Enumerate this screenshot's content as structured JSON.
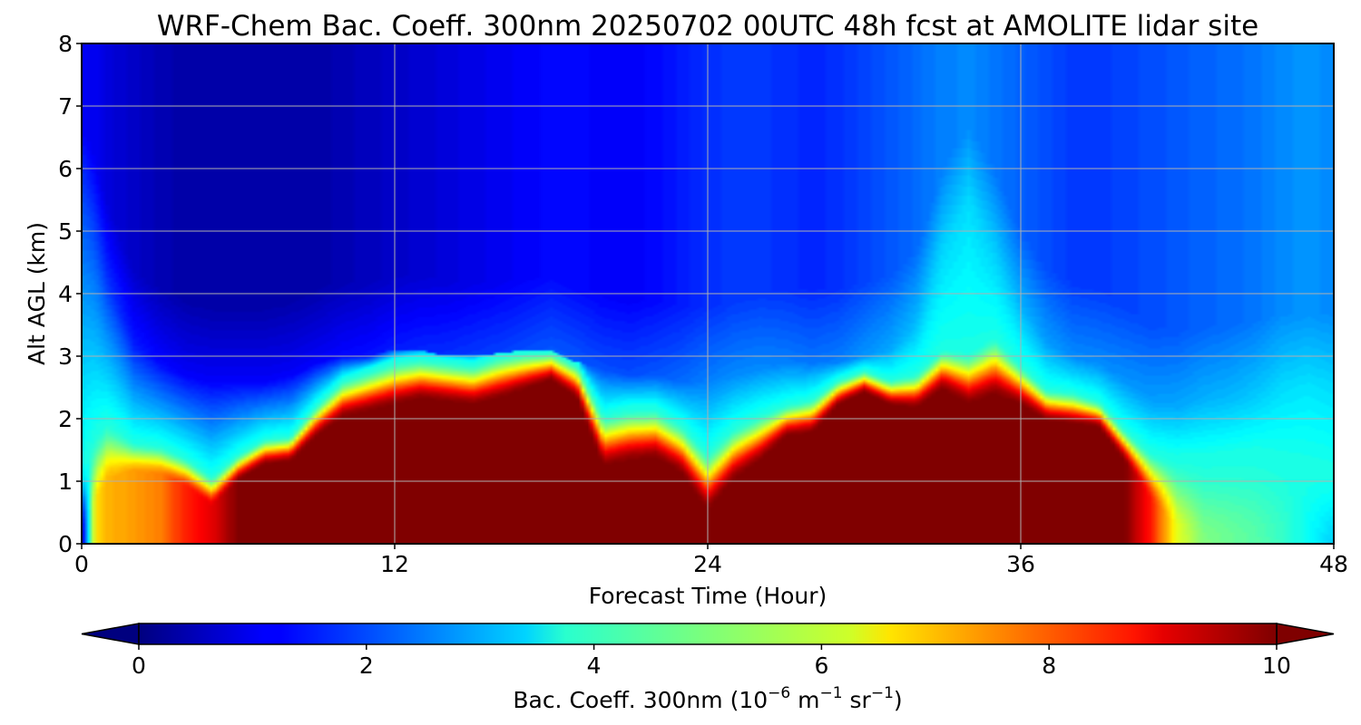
{
  "chart_data": {
    "type": "heatmap",
    "title": "WRF-Chem Bac. Coeff. 300nm  20250702 00UTC 48h fcst at AMOLITE lidar site",
    "xlabel": "Forecast Time (Hour)",
    "ylabel": "Alt AGL (km)",
    "xlim": [
      0,
      48
    ],
    "ylim": [
      0,
      8
    ],
    "x_ticks": [
      "0",
      "12",
      "24",
      "36",
      "48"
    ],
    "y_ticks": [
      "0",
      "1",
      "2",
      "3",
      "4",
      "5",
      "6",
      "7",
      "8"
    ],
    "grid": true,
    "colorbar": {
      "label_main": "Bac. Coeff. 300nm  (10",
      "label_exp1": "−6",
      "label_mid": " m",
      "label_exp2": "−1",
      "label_mid2": " sr",
      "label_exp3": "−1",
      "label_end": ")",
      "ticks": [
        "0",
        "2",
        "4",
        "6",
        "8",
        "10"
      ],
      "range": [
        0,
        10
      ],
      "extend": "both",
      "colormap": "jet"
    },
    "x": [
      0,
      0.5,
      1,
      2,
      3,
      4,
      5,
      6,
      7,
      8,
      9,
      10,
      11,
      12,
      13,
      14,
      15,
      16,
      17,
      18,
      19,
      20,
      21,
      22,
      23,
      24,
      25,
      26,
      27,
      28,
      29,
      30,
      31,
      32,
      33,
      34,
      35,
      36,
      37,
      38,
      39,
      40,
      41,
      42,
      43,
      44,
      45,
      46,
      47,
      48
    ],
    "aerosol_layer_top_km": [
      0.1,
      0.6,
      1.0,
      1.15,
      1.1,
      0.9,
      0.6,
      1.0,
      1.25,
      1.3,
      1.7,
      2.0,
      2.1,
      2.2,
      2.3,
      2.25,
      2.2,
      2.3,
      2.45,
      2.6,
      2.3,
      1.2,
      1.3,
      1.35,
      1.1,
      0.5,
      1.0,
      1.3,
      1.7,
      1.75,
      2.2,
      2.4,
      2.2,
      2.15,
      2.45,
      2.2,
      2.35,
      2.2,
      1.95,
      1.9,
      1.85,
      1.3,
      0.7,
      0.2,
      0.0,
      0.0,
      0.0,
      0.0,
      0.0,
      0.0
    ],
    "surface_value": [
      0.5,
      6.5,
      7.0,
      7.2,
      7.5,
      8.5,
      9.0,
      10.0,
      10.0,
      10.0,
      10.0,
      10.0,
      10.0,
      10.0,
      10.0,
      10.0,
      10.0,
      10.0,
      10.0,
      10.0,
      10.0,
      10.0,
      10.0,
      10.0,
      10.0,
      10.0,
      10.0,
      10.0,
      10.0,
      10.0,
      10.0,
      10.0,
      10.0,
      10.0,
      10.0,
      10.0,
      10.0,
      10.0,
      10.0,
      10.0,
      10.0,
      10.0,
      8.5,
      6.0,
      5.0,
      4.8,
      4.6,
      4.3,
      3.8,
      3.3
    ],
    "transition_thickness_km": [
      1.2,
      1.2,
      1.0,
      0.5,
      0.5,
      0.5,
      0.5,
      0.45,
      0.45,
      0.45,
      0.55,
      0.65,
      0.7,
      0.75,
      0.7,
      0.7,
      0.7,
      0.75,
      0.65,
      0.5,
      0.6,
      0.9,
      0.9,
      0.85,
      0.85,
      1.0,
      0.9,
      0.8,
      0.55,
      0.6,
      0.45,
      0.4,
      0.45,
      0.6,
      0.7,
      0.9,
      1.0,
      0.7,
      0.55,
      0.55,
      0.45,
      0.55,
      0.8,
      1.2,
      1.4,
      1.45,
      1.5,
      1.4,
      1.3,
      1.2
    ],
    "plume_top_km": [
      5.5,
      5.0,
      4.2,
      3.2,
      2.9,
      2.7,
      2.6,
      2.6,
      2.6,
      2.7,
      2.9,
      3.0,
      3.0,
      3.1,
      3.1,
      3.0,
      3.0,
      3.0,
      3.05,
      3.1,
      2.9,
      2.8,
      2.7,
      2.7,
      2.6,
      2.6,
      2.7,
      2.8,
      2.9,
      2.9,
      2.9,
      3.0,
      3.1,
      3.5,
      4.8,
      5.5,
      4.8,
      3.8,
      3.2,
      3.0,
      2.9,
      2.6,
      2.3,
      2.2,
      2.3,
      2.3,
      2.4,
      2.5,
      2.5,
      2.5
    ],
    "background_aloft_value": [
      1.2,
      1.1,
      0.9,
      0.7,
      0.5,
      0.4,
      0.4,
      0.4,
      0.4,
      0.4,
      0.4,
      0.5,
      0.6,
      0.7,
      0.8,
      0.9,
      1.0,
      1.1,
      1.2,
      1.3,
      1.3,
      1.2,
      1.2,
      1.3,
      1.5,
      1.7,
      1.8,
      1.8,
      1.7,
      1.6,
      1.7,
      1.9,
      2.1,
      2.3,
      2.5,
      2.6,
      2.4,
      2.2,
      2.0,
      1.8,
      1.8,
      1.9,
      2.0,
      2.1,
      2.2,
      2.3,
      2.4,
      2.6,
      2.7,
      2.6
    ]
  }
}
